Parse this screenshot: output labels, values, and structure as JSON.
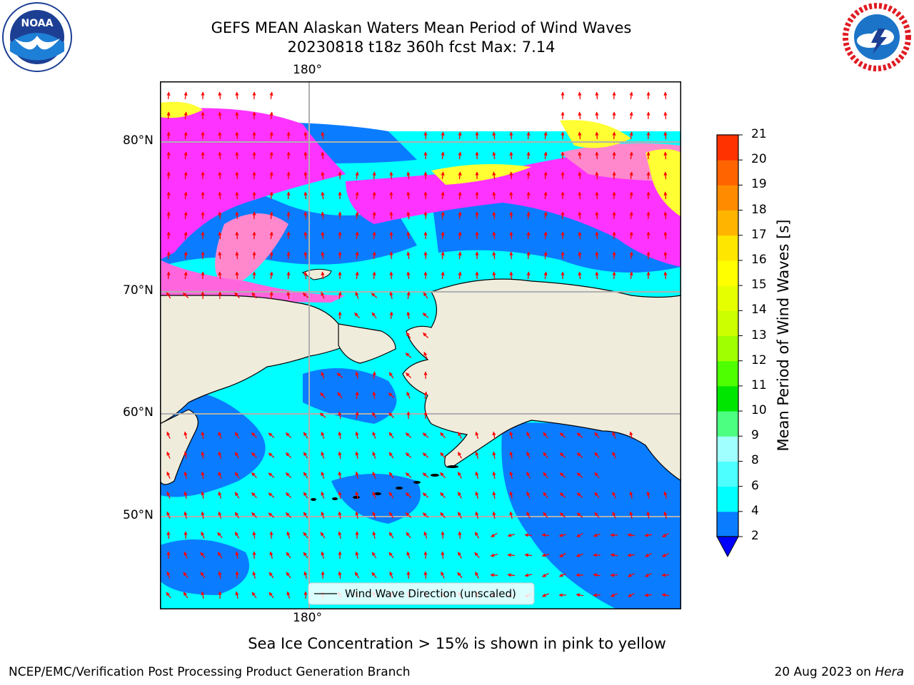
{
  "title": {
    "line1": "GEFS MEAN Alaskan Waters Mean Period of Wind Waves",
    "line2": "20230818 t18z 360h fcst   Max: 7.14"
  },
  "logos": {
    "left": {
      "text": "NOAA",
      "ring_text": "NATIONAL OCEANIC AND ATMOSPHERIC ADMINISTRATION · U.S. DEPARTMENT OF COMMERCE"
    },
    "right": {
      "ring_text": "NATIONAL WEATHER SERVICE"
    }
  },
  "map": {
    "top_meridian_label": "180°",
    "bottom_meridian_label": "180°",
    "lat_labels": [
      "80°N",
      "70°N",
      "60°N",
      "50°N"
    ],
    "legend_label": "Wind Wave Direction (unscaled)",
    "colors": {
      "land": "#efecdc",
      "period_2_4": "#0a7cff",
      "period_4_6": "#00ffff",
      "period_6_8": "#4dffff",
      "ice_low": "#ff33ff",
      "ice_mid": "#ff88cc",
      "ice_high": "#ffff33",
      "arrow": "#ff0000",
      "grid": "#b0b0b0"
    }
  },
  "colorbar": {
    "title": "Mean Period of Wind Waves [s]",
    "ticks": [
      "2",
      "4",
      "6",
      "8",
      "9",
      "10",
      "11",
      "12",
      "13",
      "14",
      "15",
      "16",
      "17",
      "18",
      "19",
      "20",
      "21"
    ],
    "colors": [
      "#0a7cff",
      "#00ffff",
      "#4dffff",
      "#a0ffff",
      "#4dff80",
      "#00e600",
      "#4dff00",
      "#a0ff00",
      "#ccff00",
      "#e6ff00",
      "#ffff00",
      "#ffe600",
      "#ffb400",
      "#ff8c00",
      "#ff6400",
      "#ff3200",
      "#ff0000"
    ],
    "under_color": "#0000ff"
  },
  "caption": "Sea Ice Concentration > 15% is shown in pink to yellow",
  "footer": {
    "left": "NCEP/EMC/Verification Post Processing Product Generation Branch",
    "right_prefix": "20 Aug 2023 on",
    "right_host": "Hera"
  }
}
